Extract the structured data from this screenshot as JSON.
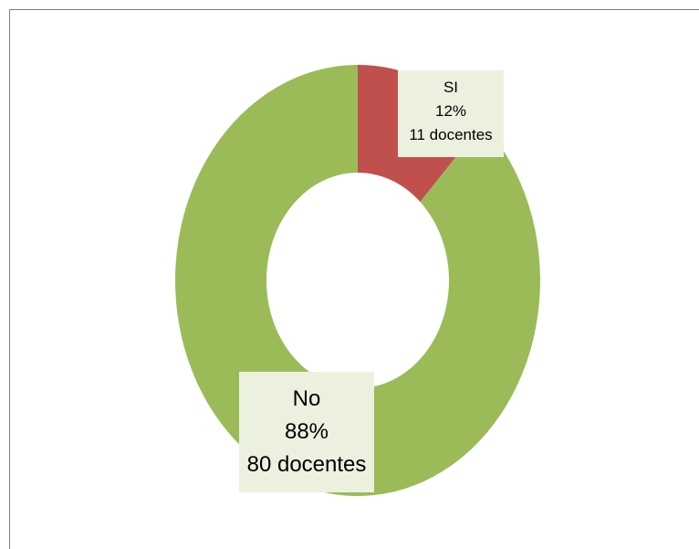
{
  "chart_data": {
    "type": "pie",
    "variant": "donut",
    "title": "",
    "slices": [
      {
        "label": "SI",
        "percent": 12,
        "percent_label": "12%",
        "count_label": "11 docentes",
        "value": 11,
        "color": "#c0504d"
      },
      {
        "label": "No",
        "percent": 88,
        "percent_label": "88%",
        "count_label": "80 docentes",
        "value": 80,
        "color": "#9bbb59"
      }
    ],
    "legend": "none"
  }
}
